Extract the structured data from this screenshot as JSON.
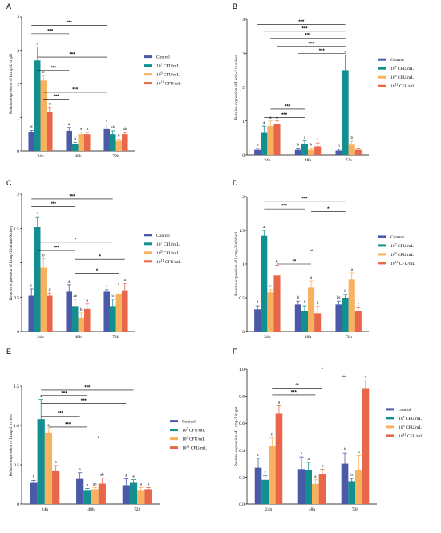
{
  "colors": [
    "#4a5aa8",
    "#138f8f",
    "#f7b15f",
    "#e8674b"
  ],
  "chart_data": [
    {
      "type": "bar",
      "panel": "A",
      "ylabel": "Relative expression of Lcmp-2 in gill",
      "categories": [
        "24h",
        "48h",
        "72h"
      ],
      "ylim": [
        0,
        4
      ],
      "yticks": [
        "0",
        "1",
        "2",
        "3",
        "4"
      ],
      "legend": [
        "Control",
        "10^7 CFU/mL",
        "10^9 CFU/mL",
        "10^11 CFU/mL"
      ],
      "series": [
        {
          "name": "Control",
          "values": [
            0.55,
            0.6,
            0.65
          ],
          "err": [
            0.06,
            0.1,
            0.15
          ],
          "letters": [
            "d",
            "a",
            "a"
          ]
        },
        {
          "name": "10^7 CFU/mL",
          "values": [
            2.7,
            0.2,
            0.5
          ],
          "err": [
            0.4,
            0.05,
            0.1
          ],
          "letters": [
            "a",
            "b",
            "ab"
          ]
        },
        {
          "name": "10^9 CFU/mL",
          "values": [
            2.1,
            0.5,
            0.3
          ],
          "err": [
            0.15,
            0.06,
            0.05
          ],
          "letters": [
            "b",
            "a",
            "b"
          ]
        },
        {
          "name": "10^11 CFU/mL",
          "values": [
            1.15,
            0.5,
            0.5
          ],
          "err": [
            0.15,
            0.05,
            0.05
          ],
          "letters": [
            "c",
            "a",
            "ab"
          ]
        }
      ],
      "brackets": [
        {
          "from": [
            0,
            0
          ],
          "to": [
            2,
            0
          ],
          "y": 3.75,
          "label": "***"
        },
        {
          "from": [
            0,
            0
          ],
          "to": [
            1,
            0
          ],
          "y": 3.5,
          "label": "***"
        },
        {
          "from": [
            0,
            1
          ],
          "to": [
            2,
            0
          ],
          "y": 2.8,
          "label": "***"
        },
        {
          "from": [
            0,
            1
          ],
          "to": [
            1,
            0
          ],
          "y": 2.4,
          "label": "***"
        },
        {
          "from": [
            0,
            2
          ],
          "to": [
            2,
            0
          ],
          "y": 1.75,
          "label": "***"
        },
        {
          "from": [
            0,
            2
          ],
          "to": [
            1,
            0
          ],
          "y": 1.55,
          "label": "***"
        }
      ]
    },
    {
      "type": "bar",
      "panel": "B",
      "ylabel": "Relative expression of Lcmp-2 in spleen",
      "categories": [
        "24h",
        "48h",
        "72h"
      ],
      "ylim": [
        0,
        4
      ],
      "yticks": [
        "0",
        "1",
        "2",
        "3",
        "4"
      ],
      "legend": [
        "Control",
        "10^7 CFU/mL",
        "10^9 CFU/mL",
        "10^11 CFU/mL"
      ],
      "series": [
        {
          "name": "Control",
          "values": [
            0.15,
            0.15,
            0.13
          ],
          "err": [
            0.04,
            0.05,
            0.04
          ],
          "letters": [
            "b",
            "b",
            "b"
          ]
        },
        {
          "name": "10^7 CFU/mL",
          "values": [
            0.65,
            0.32,
            2.5
          ],
          "err": [
            0.2,
            0.1,
            0.45
          ],
          "letters": [
            "a",
            "a",
            "a"
          ]
        },
        {
          "name": "10^9 CFU/mL",
          "values": [
            0.85,
            0.15,
            0.3
          ],
          "err": [
            0.15,
            0.05,
            0.1
          ],
          "letters": [
            "a",
            "b",
            "b"
          ]
        },
        {
          "name": "10^11 CFU/mL",
          "values": [
            0.9,
            0.25,
            0.15
          ],
          "err": [
            0.1,
            0.1,
            0.05
          ],
          "letters": [
            "a",
            "a",
            "c"
          ]
        }
      ],
      "brackets": [
        {
          "from": [
            0,
            0
          ],
          "to": [
            2,
            1
          ],
          "y": 3.85,
          "label": "***"
        },
        {
          "from": [
            0,
            1
          ],
          "to": [
            2,
            1
          ],
          "y": 3.65,
          "label": "***"
        },
        {
          "from": [
            0,
            2
          ],
          "to": [
            2,
            1
          ],
          "y": 3.45,
          "label": "***"
        },
        {
          "from": [
            0,
            3
          ],
          "to": [
            2,
            1
          ],
          "y": 3.2,
          "label": "***"
        },
        {
          "from": [
            1,
            0
          ],
          "to": [
            2,
            1
          ],
          "y": 3.0,
          "label": "***"
        },
        {
          "from": [
            0,
            2
          ],
          "to": [
            1,
            1
          ],
          "y": 1.35,
          "label": "***"
        },
        {
          "from": [
            0,
            1
          ],
          "to": [
            1,
            1
          ],
          "y": 1.1,
          "label": "***"
        }
      ]
    },
    {
      "type": "bar",
      "panel": "C",
      "ylabel": "Relative expression of Lcmp-2 in head-kidney",
      "categories": [
        "24h",
        "48h",
        "72h"
      ],
      "ylim": [
        0,
        2
      ],
      "yticks": [
        "0",
        "0.5",
        "1",
        "1.5",
        "2"
      ],
      "legend": [
        "Control",
        "10^7 CFU/mL",
        "10^9 CFU/mL",
        "10^11 CFU/mL"
      ],
      "series": [
        {
          "name": "Control",
          "values": [
            0.52,
            0.58,
            0.58
          ],
          "err": [
            0.1,
            0.1,
            0.03
          ],
          "letters": [
            "c",
            "a",
            "a"
          ]
        },
        {
          "name": "10^7 CFU/mL",
          "values": [
            1.52,
            0.37,
            0.37
          ],
          "err": [
            0.15,
            0.1,
            0.1
          ],
          "letters": [
            "a",
            "ab",
            "b"
          ]
        },
        {
          "name": "10^9 CFU/mL",
          "values": [
            0.93,
            0.2,
            0.55
          ],
          "err": [
            0.13,
            0.07,
            0.1
          ],
          "letters": [
            "b",
            "b",
            "a"
          ]
        },
        {
          "name": "10^11 CFU/mL",
          "values": [
            0.52,
            0.33,
            0.6
          ],
          "err": [
            0.04,
            0.07,
            0.1
          ],
          "letters": [
            "c",
            "b",
            "a"
          ]
        }
      ],
      "brackets": [
        {
          "from": [
            0,
            0
          ],
          "to": [
            2,
            1
          ],
          "y": 1.93,
          "label": "***"
        },
        {
          "from": [
            0,
            0
          ],
          "to": [
            1,
            1
          ],
          "y": 1.82,
          "label": "***"
        },
        {
          "from": [
            0,
            1
          ],
          "to": [
            2,
            1
          ],
          "y": 1.3,
          "label": "*"
        },
        {
          "from": [
            0,
            1
          ],
          "to": [
            1,
            1
          ],
          "y": 1.18,
          "label": "***"
        },
        {
          "from": [
            1,
            1
          ],
          "to": [
            2,
            3
          ],
          "y": 1.05,
          "label": "*"
        },
        {
          "from": [
            1,
            1
          ],
          "to": [
            2,
            2
          ],
          "y": 0.85,
          "label": "*"
        }
      ]
    },
    {
      "type": "bar",
      "panel": "D",
      "ylabel": "Relative expression of Lcmp-2 in blood",
      "categories": [
        "24h",
        "48h",
        "72h"
      ],
      "ylim": [
        0,
        2
      ],
      "yticks": [
        "0",
        "0.5",
        "1",
        "1.5",
        "2"
      ],
      "legend": [
        "Control",
        "10^7 CFU/mL",
        "10^9 CFU/mL",
        "10^11 CFU/mL"
      ],
      "series": [
        {
          "name": "Control",
          "values": [
            0.33,
            0.4,
            0.4
          ],
          "err": [
            0.05,
            0.05,
            0.05
          ],
          "letters": [
            "d",
            "b",
            "bc"
          ]
        },
        {
          "name": "10^7 CFU/mL",
          "values": [
            1.42,
            0.3,
            0.5
          ],
          "err": [
            0.08,
            0.08,
            0.05
          ],
          "letters": [
            "a",
            "b",
            "b"
          ]
        },
        {
          "name": "10^9 CFU/mL",
          "values": [
            0.58,
            0.65,
            0.77
          ],
          "err": [
            0.04,
            0.1,
            0.1
          ],
          "letters": [
            "c",
            "a",
            "a"
          ]
        },
        {
          "name": "10^11 CFU/mL",
          "values": [
            0.83,
            0.27,
            0.3
          ],
          "err": [
            0.15,
            0.1,
            0.05
          ],
          "letters": [
            "b",
            "b",
            "c"
          ]
        }
      ],
      "brackets": [
        {
          "from": [
            0,
            1
          ],
          "to": [
            2,
            1
          ],
          "y": 1.93,
          "label": "***"
        },
        {
          "from": [
            0,
            1
          ],
          "to": [
            1,
            1
          ],
          "y": 1.82,
          "label": "***"
        },
        {
          "from": [
            1,
            2
          ],
          "to": [
            2,
            1
          ],
          "y": 1.78,
          "label": "*"
        },
        {
          "from": [
            0,
            3
          ],
          "to": [
            2,
            1
          ],
          "y": 1.15,
          "label": "**"
        },
        {
          "from": [
            0,
            3
          ],
          "to": [
            1,
            2
          ],
          "y": 1.0,
          "label": "**"
        }
      ]
    },
    {
      "type": "bar",
      "panel": "E",
      "ylabel": "Relative expression of Lcmp-2 in liver",
      "categories": [
        "24h",
        "48h",
        "72h"
      ],
      "ylim": [
        0,
        1.5
      ],
      "yticks": [
        "0",
        "0.5",
        "1.0",
        "1.5"
      ],
      "legend": [
        "Control",
        "10^7 CFU/mL",
        "10^9 CFU/mL",
        "10^11 CFU/mL"
      ],
      "series": [
        {
          "name": "Control",
          "values": [
            0.27,
            0.32,
            0.24
          ],
          "err": [
            0.03,
            0.08,
            0.08
          ],
          "letters": [
            "b",
            "a",
            "a"
          ]
        },
        {
          "name": "10^7 CFU/mL",
          "values": [
            1.08,
            0.17,
            0.27
          ],
          "err": [
            0.25,
            0.03,
            0.04
          ],
          "letters": [
            "a",
            "b",
            "a"
          ]
        },
        {
          "name": "10^9 CFU/mL",
          "values": [
            0.91,
            0.19,
            0.17
          ],
          "err": [
            0.05,
            0.02,
            0.04
          ],
          "letters": [
            "a",
            "ab",
            "a"
          ]
        },
        {
          "name": "10^11 CFU/mL",
          "values": [
            0.42,
            0.26,
            0.19
          ],
          "err": [
            0.07,
            0.07,
            0.02
          ],
          "letters": [
            "b",
            "ab",
            "a"
          ]
        }
      ],
      "brackets": [
        {
          "from": [
            0,
            1
          ],
          "to": [
            2,
            1
          ],
          "y": 1.45,
          "label": "***"
        },
        {
          "from": [
            0,
            1
          ],
          "to": [
            1,
            1
          ],
          "y": 1.38,
          "label": "***"
        },
        {
          "from": [
            0,
            1
          ],
          "to": [
            2,
            0
          ],
          "y": 1.28,
          "label": "***"
        },
        {
          "from": [
            0,
            1
          ],
          "to": [
            1,
            0
          ],
          "y": 1.12,
          "label": "***"
        },
        {
          "from": [
            0,
            2
          ],
          "to": [
            1,
            1
          ],
          "y": 0.98,
          "label": "***"
        },
        {
          "from": [
            0,
            2
          ],
          "to": [
            2,
            3
          ],
          "y": 0.8,
          "label": "*"
        }
      ]
    },
    {
      "type": "bar",
      "panel": "F",
      "ylabel": "Relative expression of Lcmp-2 in gut",
      "categories": [
        "24h",
        "48h",
        "72h"
      ],
      "ylim": [
        0,
        1
      ],
      "yticks": [
        "0.0",
        "0.2",
        "0.4",
        "0.6",
        "0.8",
        "1.0"
      ],
      "legend": [
        "control",
        "10^7 CFU/mL",
        "10^9 CFU/mL",
        "10^11 CFU/mL"
      ],
      "series": [
        {
          "name": "control",
          "values": [
            0.27,
            0.26,
            0.3
          ],
          "err": [
            0.07,
            0.09,
            0.08
          ],
          "letters": [
            "c",
            "a",
            "b"
          ]
        },
        {
          "name": "10^7 CFU/mL",
          "values": [
            0.18,
            0.25,
            0.17
          ],
          "err": [
            0.03,
            0.06,
            0.02
          ],
          "letters": [
            "c",
            "a",
            "b"
          ]
        },
        {
          "name": "10^9 CFU/mL",
          "values": [
            0.43,
            0.15,
            0.25
          ],
          "err": [
            0.06,
            0.03,
            0.11
          ],
          "letters": [
            "b",
            "a",
            "b"
          ]
        },
        {
          "name": "10^11 CFU/mL",
          "values": [
            0.67,
            0.22,
            0.86
          ],
          "err": [
            0.06,
            0.04,
            0.06
          ],
          "letters": [
            "a",
            "a",
            "a"
          ]
        }
      ],
      "brackets": [
        {
          "from": [
            0,
            3
          ],
          "to": [
            2,
            3
          ],
          "y": 0.98,
          "label": "*"
        },
        {
          "from": [
            1,
            3
          ],
          "to": [
            2,
            3
          ],
          "y": 0.92,
          "label": "***"
        },
        {
          "from": [
            0,
            2
          ],
          "to": [
            1,
            3
          ],
          "y": 0.86,
          "label": "**"
        },
        {
          "from": [
            0,
            2
          ],
          "to": [
            1,
            2
          ],
          "y": 0.81,
          "label": "***"
        }
      ]
    }
  ]
}
